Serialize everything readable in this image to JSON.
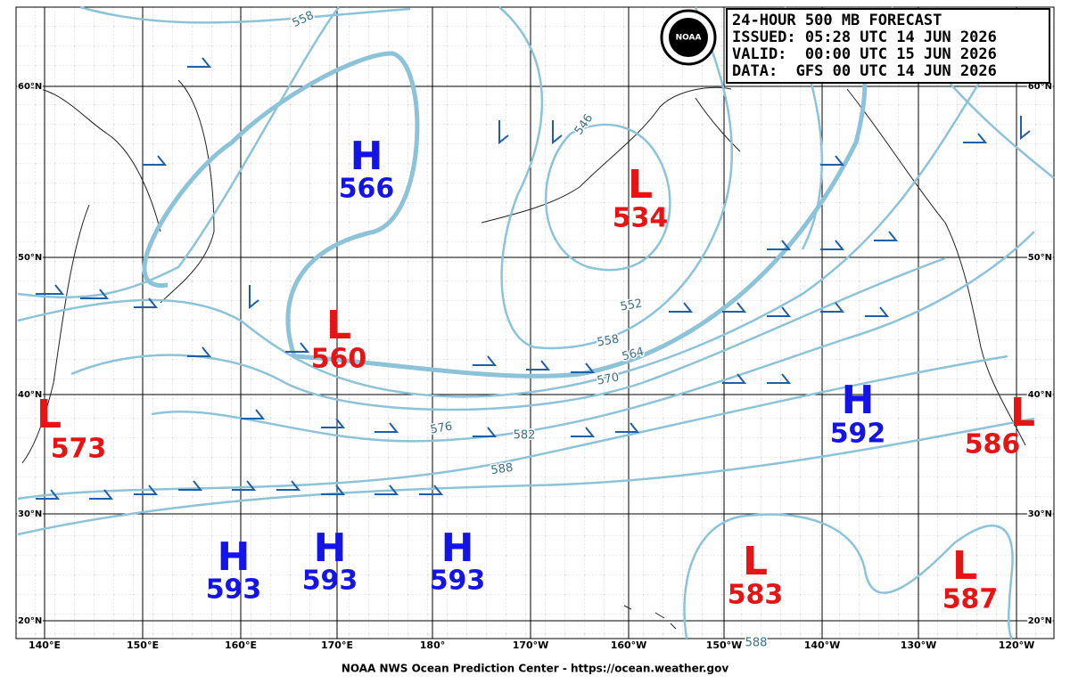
{
  "header": {
    "lines": [
      "24-HOUR 500 MB FORECAST",
      "ISSUED: 05:28 UTC 14 JUN 2026",
      "VALID:  00:00 UTC 15 JUN 2026",
      "DATA:  GFS 00 UTC 14 JUN 2026"
    ]
  },
  "logo": "NOAA",
  "lat_labels": [
    "60°N",
    "50°N",
    "40°N",
    "30°N",
    "20°N"
  ],
  "lon_labels": [
    "140°E",
    "150°E",
    "160°E",
    "170°E",
    "180°",
    "170°W",
    "160°W",
    "150°W",
    "140°W",
    "130°W",
    "120°W"
  ],
  "centers": [
    {
      "type": "H",
      "value": 566
    },
    {
      "type": "L",
      "value": 534
    },
    {
      "type": "L",
      "value": 560
    },
    {
      "type": "L",
      "value": 573
    },
    {
      "type": "H",
      "value": 592
    },
    {
      "type": "L",
      "value": 586
    },
    {
      "type": "H",
      "value": 593
    },
    {
      "type": "H",
      "value": 593
    },
    {
      "type": "H",
      "value": 593
    },
    {
      "type": "L",
      "value": 583
    },
    {
      "type": "L",
      "value": 587
    }
  ],
  "contour_labels": [
    558,
    546,
    552,
    558,
    564,
    570,
    576,
    582,
    588,
    588
  ],
  "footer": "NOAA NWS Ocean Prediction Center - https://ocean.weather.gov"
}
